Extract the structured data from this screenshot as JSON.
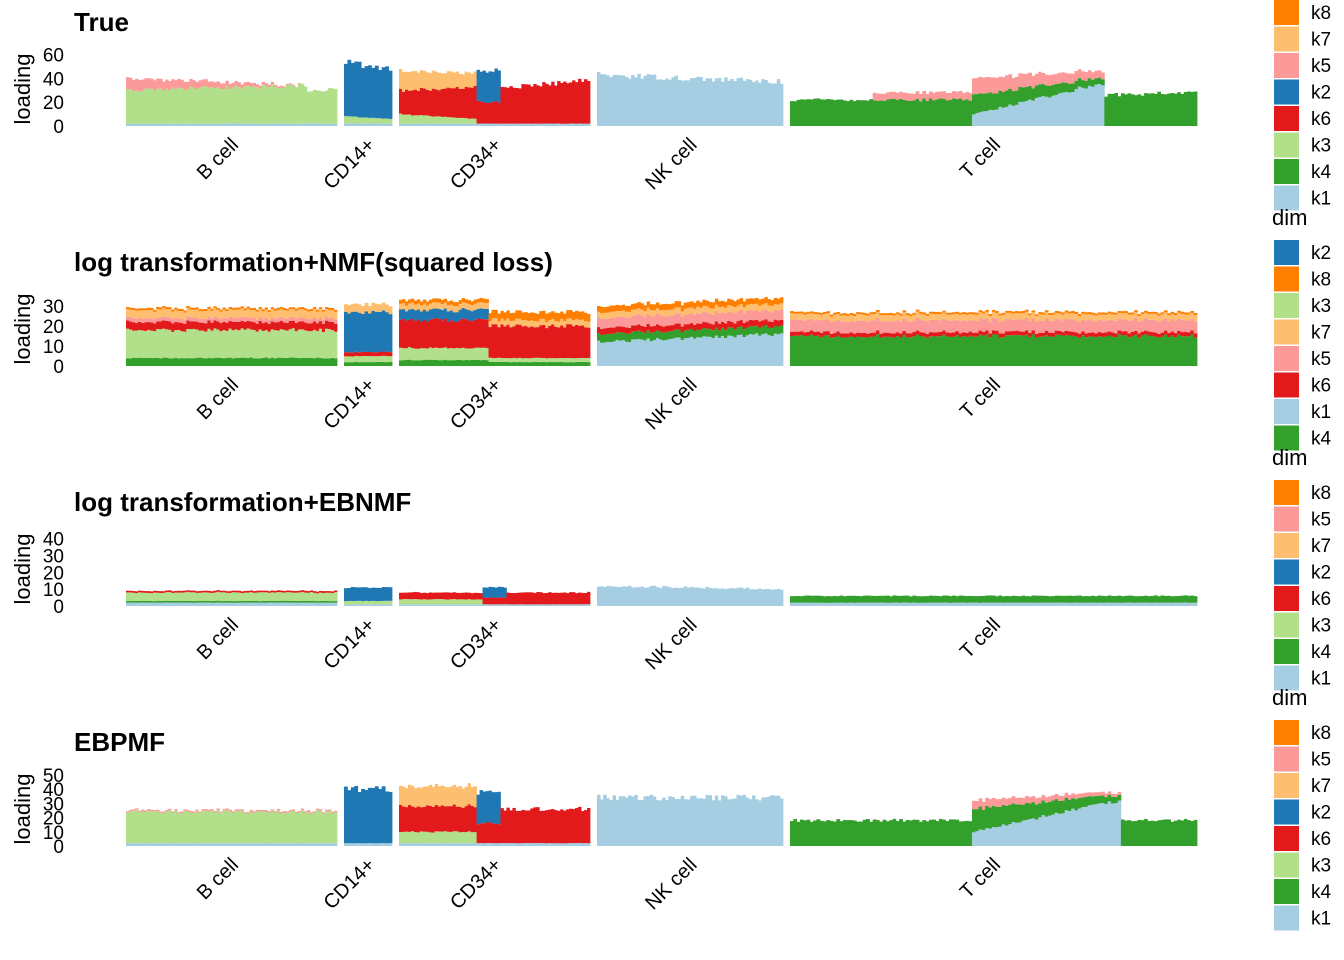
{
  "colors": {
    "k1": "#A6CEE3",
    "k2": "#1F78B4",
    "k3": "#B2DF8A",
    "k4": "#33A02C",
    "k5": "#FB9A99",
    "k6": "#E31A1C",
    "k7": "#FDBF6F",
    "k8": "#FF7F00"
  },
  "chart_data": [
    {
      "type": "bar",
      "stacked": true,
      "title": "True",
      "ylabel": "loading",
      "xlabel": "",
      "yticks": [
        0,
        20,
        40,
        60
      ],
      "ylim": [
        0,
        62
      ],
      "legend_title": "",
      "legend": [
        "k8",
        "k7",
        "k5",
        "k2",
        "k6",
        "k3",
        "k4",
        "k1"
      ],
      "groups": [
        {
          "label": "B cell",
          "segments": [
            {
              "bins": 60,
              "base": {
                "k1": 2,
                "k5": 10,
                "k3": 28
              },
              "end": {
                "k1": 2,
                "k3": 32
              }
            },
            {
              "bins": 10,
              "base": {
                "k1": 2,
                "k3": 28
              }
            }
          ]
        },
        {
          "label": "CD14+",
          "segments": [
            {
              "bins": 14,
              "base": {
                "k1": 2,
                "k3": 6,
                "k2": 45
              },
              "end": {
                "k1": 2,
                "k3": 4,
                "k2": 42
              }
            }
          ]
        },
        {
          "label": "CD34+",
          "segments": [
            {
              "bins": 26,
              "base": {
                "k1": 2,
                "k3": 8,
                "k6": 20,
                "k7": 16
              },
              "end": {
                "k1": 2,
                "k3": 4,
                "k6": 26,
                "k7": 12
              }
            },
            {
              "bins": 8,
              "base": {
                "k1": 2,
                "k6": 18,
                "k2": 26
              }
            },
            {
              "bins": 30,
              "base": {
                "k1": 2,
                "k6": 30
              },
              "end": {
                "k1": 2,
                "k6": 36
              }
            }
          ]
        },
        {
          "label": "NK cell",
          "segments": [
            {
              "bins": 60,
              "base": {
                "k1": 43
              },
              "end": {
                "k1": 37
              }
            }
          ]
        },
        {
          "label": "T cell",
          "segments": [
            {
              "bins": 25,
              "base": {
                "k4": 22
              }
            },
            {
              "bins": 30,
              "base": {
                "k4": 22,
                "k5": 6
              }
            },
            {
              "bins": 40,
              "base": {
                "k1": 10,
                "k4": 16,
                "k5": 14
              },
              "end": {
                "k1": 36,
                "k4": 5,
                "k5": 6
              }
            },
            {
              "bins": 28,
              "base": {
                "k4": 26
              },
              "end": {
                "k4": 28
              }
            }
          ]
        }
      ]
    },
    {
      "type": "bar",
      "stacked": true,
      "title": "log transformation+NMF(squared loss)",
      "ylabel": "loading",
      "xlabel": "",
      "yticks": [
        0,
        10,
        20,
        30
      ],
      "ylim": [
        0,
        37
      ],
      "legend_title": "dim",
      "legend": [
        "k2",
        "k8",
        "k3",
        "k7",
        "k5",
        "k6",
        "k1",
        "k4"
      ],
      "groups": [
        {
          "label": "B cell",
          "segments": [
            {
              "bins": 70,
              "base": {
                "k4": 4,
                "k6": 4,
                "k5": 2,
                "k3": 14,
                "k7": 4,
                "k8": 1
              }
            }
          ]
        },
        {
          "label": "CD14+",
          "segments": [
            {
              "bins": 14,
              "base": {
                "k4": 2,
                "k3": 3,
                "k6": 2,
                "k7": 4,
                "k2": 20
              }
            }
          ]
        },
        {
          "label": "CD34+",
          "segments": [
            {
              "bins": 30,
              "base": {
                "k4": 3,
                "k6": 14,
                "k3": 6,
                "k7": 3,
                "k2": 5,
                "k8": 2
              }
            },
            {
              "bins": 34,
              "base": {
                "k4": 2,
                "k6": 16,
                "k3": 2,
                "k7": 3,
                "k8": 4
              }
            }
          ]
        },
        {
          "label": "NK cell",
          "segments": [
            {
              "bins": 60,
              "base": {
                "k4": 4,
                "k1": 12,
                "k6": 3,
                "k5": 5,
                "k7": 3,
                "k8": 3
              },
              "end": {
                "k4": 4,
                "k1": 16,
                "k6": 3,
                "k5": 5,
                "k7": 3,
                "k8": 3
              }
            }
          ]
        },
        {
          "label": "T cell",
          "segments": [
            {
              "bins": 123,
              "base": {
                "k4": 15,
                "k6": 2,
                "k5": 6,
                "k7": 3,
                "k8": 1
              }
            }
          ]
        }
      ]
    },
    {
      "type": "bar",
      "stacked": true,
      "title": "log transformation+EBNMF",
      "ylabel": "loading",
      "xlabel": "",
      "yticks": [
        0,
        10,
        20,
        30,
        40
      ],
      "ylim": [
        0,
        44
      ],
      "legend_title": "dim",
      "legend": [
        "k8",
        "k5",
        "k7",
        "k2",
        "k6",
        "k3",
        "k4",
        "k1"
      ],
      "groups": [
        {
          "label": "B cell",
          "segments": [
            {
              "bins": 70,
              "base": {
                "k1": 2,
                "k4": 1,
                "k3": 5,
                "k6": 1
              }
            }
          ]
        },
        {
          "label": "CD14+",
          "segments": [
            {
              "bins": 14,
              "base": {
                "k1": 1,
                "k3": 2,
                "k2": 8
              }
            }
          ]
        },
        {
          "label": "CD34+",
          "segments": [
            {
              "bins": 28,
              "base": {
                "k1": 1,
                "k3": 3,
                "k6": 4
              }
            },
            {
              "bins": 8,
              "base": {
                "k1": 1,
                "k6": 4,
                "k2": 6
              }
            },
            {
              "bins": 28,
              "base": {
                "k1": 1,
                "k6": 7
              }
            }
          ]
        },
        {
          "label": "NK cell",
          "segments": [
            {
              "bins": 60,
              "base": {
                "k1": 12
              },
              "end": {
                "k1": 10
              }
            }
          ]
        },
        {
          "label": "T cell",
          "segments": [
            {
              "bins": 123,
              "base": {
                "k1": 2,
                "k4": 4
              }
            }
          ]
        }
      ]
    },
    {
      "type": "bar",
      "stacked": true,
      "title": "EBPMF",
      "ylabel": "loading",
      "xlabel": "",
      "yticks": [
        0,
        10,
        20,
        30,
        40,
        50
      ],
      "ylim": [
        0,
        52
      ],
      "legend_title": "dim",
      "legend": [
        "k8",
        "k5",
        "k7",
        "k2",
        "k6",
        "k3",
        "k4",
        "k1"
      ],
      "groups": [
        {
          "label": "B cell",
          "segments": [
            {
              "bins": 70,
              "base": {
                "k1": 2,
                "k3": 22,
                "k5": 1
              }
            }
          ]
        },
        {
          "label": "CD14+",
          "segments": [
            {
              "bins": 14,
              "base": {
                "k1": 2,
                "k2": 38
              }
            }
          ]
        },
        {
          "label": "CD34+",
          "segments": [
            {
              "bins": 26,
              "base": {
                "k1": 2,
                "k3": 8,
                "k6": 18,
                "k7": 14
              }
            },
            {
              "bins": 8,
              "base": {
                "k1": 2,
                "k6": 14,
                "k2": 22
              }
            },
            {
              "bins": 30,
              "base": {
                "k1": 2,
                "k6": 24
              }
            }
          ]
        },
        {
          "label": "NK cell",
          "segments": [
            {
              "bins": 60,
              "base": {
                "k1": 34
              }
            }
          ]
        },
        {
          "label": "T cell",
          "segments": [
            {
              "bins": 55,
              "base": {
                "k4": 18
              }
            },
            {
              "bins": 45,
              "base": {
                "k1": 10,
                "k4": 16,
                "k5": 6
              },
              "end": {
                "k1": 32,
                "k4": 4,
                "k5": 2
              }
            },
            {
              "bins": 23,
              "base": {
                "k4": 18
              }
            }
          ]
        }
      ]
    }
  ]
}
